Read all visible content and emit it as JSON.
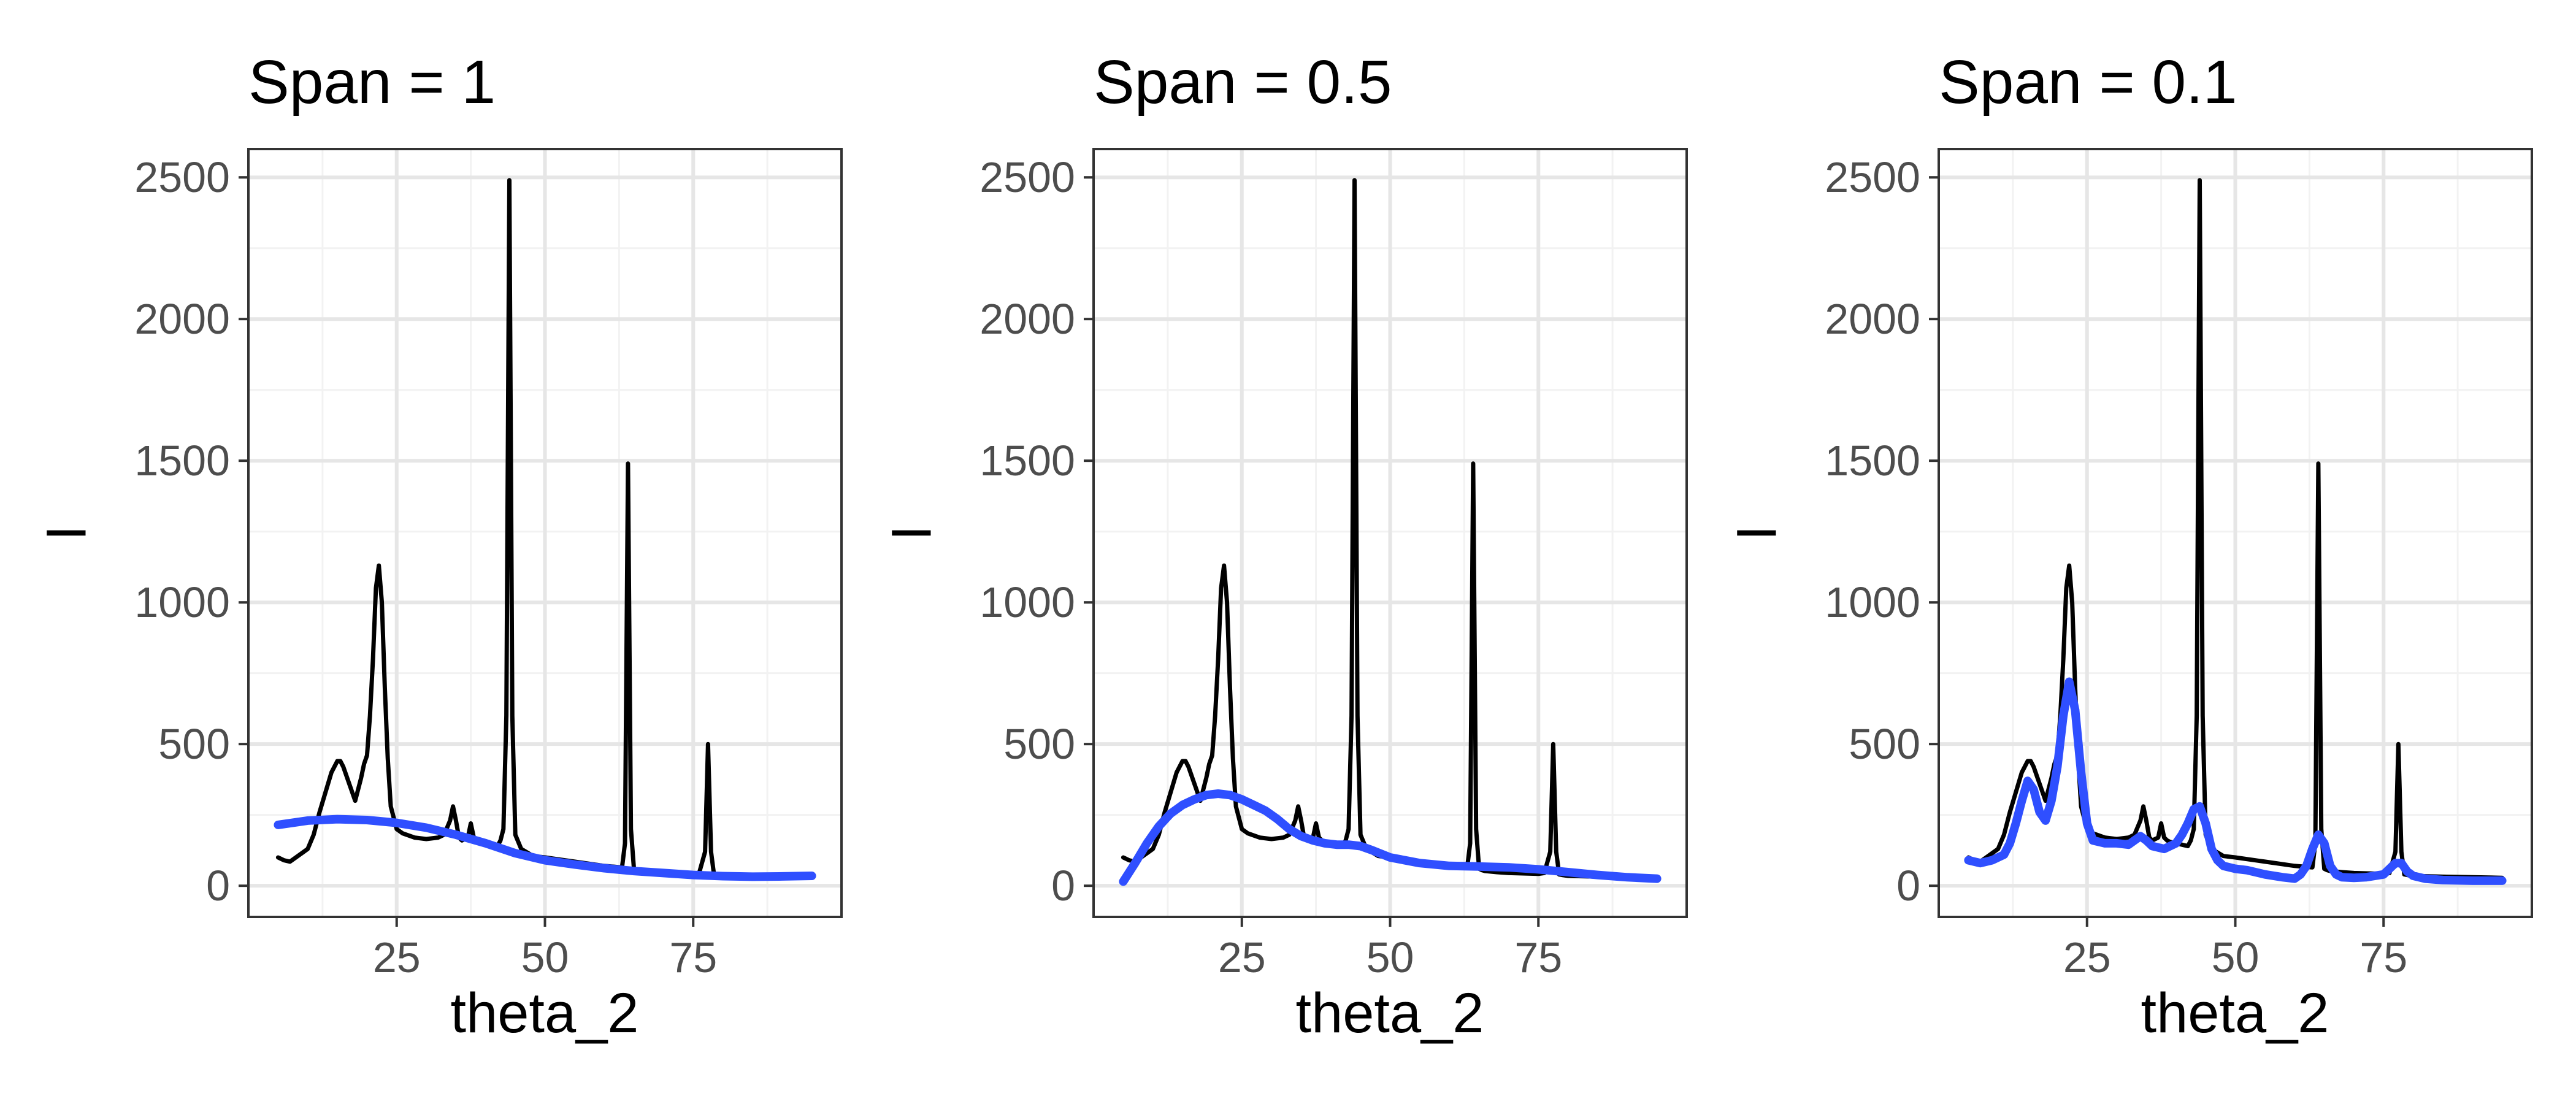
{
  "colors": {
    "background": "#ffffff",
    "panel_border": "#333333",
    "grid_major": "#e6e6e6",
    "grid_minor": "#f2f2f2",
    "raw_line": "#000000",
    "smooth_line": "#2f4fff",
    "tick_text": "#4d4d4d",
    "title_text": "#000000"
  },
  "chart_data": [
    {
      "type": "line",
      "title": "Span = 1",
      "xlabel": "theta_2",
      "ylabel": "I",
      "xlim": [
        0,
        100
      ],
      "ylim": [
        -110,
        2600
      ],
      "xticks": [
        25,
        50,
        75
      ],
      "yticks": [
        0,
        500,
        1000,
        1500,
        2000,
        2500
      ],
      "grid": true,
      "series": [
        {
          "role": "raw",
          "color": "#000000",
          "x": [
            5,
            6,
            7,
            8,
            9,
            10,
            11,
            12,
            13,
            14,
            15,
            15.5,
            16,
            17,
            18,
            19,
            19.5,
            20,
            20.5,
            21,
            21.5,
            22,
            22.5,
            23,
            23.5,
            24,
            25,
            26,
            28,
            30,
            32,
            33,
            34,
            34.5,
            35,
            35.5,
            36,
            37,
            37.5,
            38,
            38.5,
            39,
            40,
            41,
            42,
            42.5,
            43,
            43.5,
            44,
            44.5,
            45,
            46,
            48,
            50,
            55,
            60,
            63,
            63.5,
            64,
            64.5,
            65,
            65.5,
            66,
            68,
            70,
            75,
            76,
            77,
            77.5,
            78,
            78.5,
            79,
            80,
            85,
            90,
            95
          ],
          "y": [
            100,
            90,
            85,
            100,
            115,
            130,
            180,
            260,
            330,
            400,
            440,
            440,
            420,
            360,
            300,
            380,
            430,
            460,
            600,
            800,
            1050,
            1130,
            1000,
            700,
            450,
            280,
            200,
            185,
            170,
            165,
            170,
            180,
            230,
            280,
            230,
            170,
            160,
            170,
            220,
            170,
            160,
            155,
            150,
            145,
            140,
            160,
            200,
            600,
            2490,
            600,
            180,
            130,
            105,
            100,
            85,
            70,
            65,
            150,
            1490,
            200,
            60,
            55,
            52,
            48,
            45,
            42,
            45,
            120,
            500,
            120,
            40,
            38,
            35,
            32,
            30,
            28
          ]
        },
        {
          "role": "smooth",
          "color": "#2f4fff",
          "x": [
            5,
            10,
            15,
            20,
            25,
            30,
            35,
            40,
            45,
            50,
            55,
            60,
            65,
            70,
            75,
            80,
            85,
            90,
            95
          ],
          "y": [
            215,
            230,
            235,
            232,
            222,
            205,
            180,
            150,
            115,
            90,
            75,
            62,
            52,
            45,
            38,
            34,
            32,
            33,
            35
          ]
        }
      ]
    },
    {
      "type": "line",
      "title": "Span = 0.5",
      "xlabel": "theta_2",
      "ylabel": "I",
      "xlim": [
        0,
        100
      ],
      "ylim": [
        -110,
        2600
      ],
      "xticks": [
        25,
        50,
        75
      ],
      "yticks": [
        0,
        500,
        1000,
        1500,
        2000,
        2500
      ],
      "grid": true,
      "series": [
        {
          "role": "raw",
          "color": "#000000",
          "x": [
            5,
            6,
            7,
            8,
            9,
            10,
            11,
            12,
            13,
            14,
            15,
            15.5,
            16,
            17,
            18,
            19,
            19.5,
            20,
            20.5,
            21,
            21.5,
            22,
            22.5,
            23,
            23.5,
            24,
            25,
            26,
            28,
            30,
            32,
            33,
            34,
            34.5,
            35,
            35.5,
            36,
            37,
            37.5,
            38,
            38.5,
            39,
            40,
            41,
            42,
            42.5,
            43,
            43.5,
            44,
            44.5,
            45,
            46,
            48,
            50,
            55,
            60,
            63,
            63.5,
            64,
            64.5,
            65,
            65.5,
            66,
            68,
            70,
            75,
            76,
            77,
            77.5,
            78,
            78.5,
            79,
            80,
            85,
            90,
            95
          ],
          "y": [
            100,
            90,
            85,
            100,
            115,
            130,
            180,
            260,
            330,
            400,
            440,
            440,
            420,
            360,
            300,
            380,
            430,
            460,
            600,
            800,
            1050,
            1130,
            1000,
            700,
            450,
            280,
            200,
            185,
            170,
            165,
            170,
            180,
            230,
            280,
            230,
            170,
            160,
            170,
            220,
            170,
            160,
            155,
            150,
            145,
            140,
            160,
            200,
            600,
            2490,
            600,
            180,
            130,
            105,
            100,
            85,
            70,
            65,
            150,
            1490,
            200,
            60,
            55,
            52,
            48,
            45,
            42,
            45,
            120,
            500,
            120,
            40,
            38,
            35,
            32,
            30,
            28
          ]
        },
        {
          "role": "smooth",
          "color": "#2f4fff",
          "x": [
            5,
            7,
            9,
            11,
            13,
            15,
            17,
            19,
            21,
            23,
            25,
            27,
            29,
            31,
            33,
            35,
            37,
            39,
            41,
            43,
            45,
            47,
            50,
            55,
            60,
            65,
            70,
            75,
            80,
            85,
            90,
            95
          ],
          "y": [
            15,
            80,
            150,
            210,
            255,
            285,
            305,
            320,
            325,
            320,
            305,
            285,
            265,
            235,
            200,
            175,
            160,
            150,
            145,
            145,
            140,
            125,
            100,
            80,
            70,
            68,
            65,
            58,
            48,
            38,
            30,
            25
          ]
        }
      ]
    },
    {
      "type": "line",
      "title": "Span = 0.1",
      "xlabel": "theta_2",
      "ylabel": "I",
      "xlim": [
        0,
        100
      ],
      "ylim": [
        -110,
        2600
      ],
      "xticks": [
        25,
        50,
        75
      ],
      "yticks": [
        0,
        500,
        1000,
        1500,
        2000,
        2500
      ],
      "grid": true,
      "series": [
        {
          "role": "raw",
          "color": "#000000",
          "x": [
            5,
            6,
            7,
            8,
            9,
            10,
            11,
            12,
            13,
            14,
            15,
            15.5,
            16,
            17,
            18,
            19,
            19.5,
            20,
            20.5,
            21,
            21.5,
            22,
            22.5,
            23,
            23.5,
            24,
            25,
            26,
            28,
            30,
            32,
            33,
            34,
            34.5,
            35,
            35.5,
            36,
            37,
            37.5,
            38,
            38.5,
            39,
            40,
            41,
            42,
            42.5,
            43,
            43.5,
            44,
            44.5,
            45,
            46,
            48,
            50,
            55,
            60,
            63,
            63.5,
            64,
            64.5,
            65,
            65.5,
            66,
            68,
            70,
            75,
            76,
            77,
            77.5,
            78,
            78.5,
            79,
            80,
            85,
            90,
            95
          ],
          "y": [
            100,
            90,
            85,
            100,
            115,
            130,
            180,
            260,
            330,
            400,
            440,
            440,
            420,
            360,
            300,
            380,
            430,
            460,
            600,
            800,
            1050,
            1130,
            1000,
            700,
            450,
            280,
            200,
            185,
            170,
            165,
            170,
            180,
            230,
            280,
            230,
            170,
            160,
            170,
            220,
            170,
            160,
            155,
            150,
            145,
            140,
            160,
            200,
            600,
            2490,
            600,
            180,
            130,
            105,
            100,
            85,
            70,
            65,
            150,
            1490,
            200,
            60,
            55,
            52,
            48,
            45,
            42,
            45,
            120,
            500,
            120,
            40,
            38,
            35,
            32,
            30,
            28
          ]
        },
        {
          "role": "smooth",
          "color": "#2f4fff",
          "x": [
            5,
            7,
            9,
            11,
            12,
            13,
            14,
            15,
            16,
            17,
            18,
            19,
            20,
            21,
            22,
            23,
            24,
            25,
            26,
            28,
            30,
            32,
            34,
            35,
            36,
            38,
            40,
            41,
            42,
            43,
            44,
            45,
            46,
            47,
            48,
            50,
            52,
            55,
            58,
            60,
            61,
            62,
            63,
            64,
            65,
            66,
            67,
            68,
            70,
            72,
            75,
            76,
            77,
            78,
            79,
            80,
            82,
            85,
            90,
            95
          ],
          "y": [
            90,
            80,
            90,
            110,
            150,
            220,
            300,
            370,
            340,
            260,
            230,
            300,
            420,
            600,
            720,
            620,
            400,
            220,
            160,
            150,
            150,
            145,
            175,
            160,
            140,
            130,
            150,
            180,
            220,
            270,
            280,
            220,
            130,
            90,
            70,
            60,
            55,
            40,
            30,
            25,
            40,
            70,
            130,
            180,
            150,
            70,
            40,
            30,
            28,
            30,
            40,
            60,
            80,
            80,
            50,
            35,
            25,
            20,
            18,
            18
          ]
        }
      ]
    }
  ]
}
